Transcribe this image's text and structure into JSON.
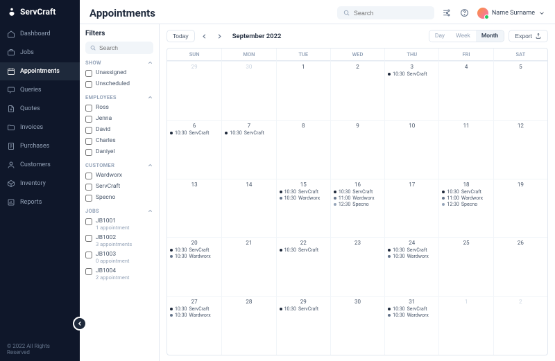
{
  "brand": {
    "name": "ServCraft"
  },
  "nav": {
    "items": [
      {
        "key": "dashboard",
        "label": "Dashboard",
        "icon": "home"
      },
      {
        "key": "jobs",
        "label": "Jobs",
        "icon": "briefcase"
      },
      {
        "key": "appointments",
        "label": "Appointments",
        "icon": "calendar",
        "active": true
      },
      {
        "key": "queries",
        "label": "Queries",
        "icon": "chat"
      },
      {
        "key": "quotes",
        "label": "Quotes",
        "icon": "doc-plus"
      },
      {
        "key": "invoices",
        "label": "Invoices",
        "icon": "folder"
      },
      {
        "key": "purchases",
        "label": "Purchases",
        "icon": "receipt"
      },
      {
        "key": "customers",
        "label": "Customers",
        "icon": "user"
      },
      {
        "key": "inventory",
        "label": "Inventory",
        "icon": "box"
      },
      {
        "key": "reports",
        "label": "Reports",
        "icon": "report"
      }
    ]
  },
  "footer": {
    "copyright": "© 2022 All Rights Reserved"
  },
  "page": {
    "title": "Appointments"
  },
  "topbar": {
    "search_placeholder": "Search",
    "user_name": "Name Surname"
  },
  "filters": {
    "title": "Filters",
    "search_placeholder": "Search",
    "sections": [
      {
        "key": "show",
        "title": "SHOW",
        "items": [
          {
            "label": "Unassigned"
          },
          {
            "label": "Unscheduled"
          }
        ]
      },
      {
        "key": "employees",
        "title": "EMPLOYEES",
        "items": [
          {
            "label": "Ross"
          },
          {
            "label": "Jenna"
          },
          {
            "label": "David"
          },
          {
            "label": "Charles"
          },
          {
            "label": "Daniyel"
          }
        ]
      },
      {
        "key": "customer",
        "title": "CUSTOMER",
        "items": [
          {
            "label": "Wardworx"
          },
          {
            "label": "ServCraft"
          },
          {
            "label": "Specno"
          }
        ]
      },
      {
        "key": "jobs",
        "title": "JOBS",
        "items": [
          {
            "label": "JB1001",
            "sub": "1 appointment"
          },
          {
            "label": "JB1002",
            "sub": "3 appointments"
          },
          {
            "label": "JB1003",
            "sub": "0 appointment"
          },
          {
            "label": "JB1004",
            "sub": "2 appointment"
          }
        ]
      }
    ]
  },
  "calendar": {
    "today_label": "Today",
    "period_label": "September 2022",
    "view_options": [
      "Day",
      "Week",
      "Month"
    ],
    "active_view": "Month",
    "export_label": "Export",
    "dow": [
      "SUN",
      "MON",
      "TUE",
      "WED",
      "THU",
      "FRI",
      "SAT"
    ],
    "colors": {
      "servcraft": "#1e293b",
      "wardworx": "#64748b",
      "specno": "#94a3b8"
    },
    "cells": [
      {
        "day": 29,
        "muted": true
      },
      {
        "day": 30,
        "muted": true
      },
      {
        "day": 1
      },
      {
        "day": 2
      },
      {
        "day": 3,
        "events": [
          {
            "time": "10:30",
            "label": "ServCraft",
            "color": "servcraft"
          }
        ]
      },
      {
        "day": 4
      },
      {
        "day": 5
      },
      {
        "day": 6,
        "events": [
          {
            "time": "10:30",
            "label": "ServCraft",
            "color": "servcraft"
          }
        ]
      },
      {
        "day": 7,
        "events": [
          {
            "time": "10:30",
            "label": "ServCraft",
            "color": "servcraft"
          }
        ]
      },
      {
        "day": 8
      },
      {
        "day": 9
      },
      {
        "day": 10
      },
      {
        "day": 11
      },
      {
        "day": 12
      },
      {
        "day": 13
      },
      {
        "day": 14
      },
      {
        "day": 15,
        "events": [
          {
            "time": "10:30",
            "label": "ServCraft",
            "color": "servcraft"
          },
          {
            "time": "10:30",
            "label": "Wardworx",
            "color": "wardworx"
          }
        ]
      },
      {
        "day": 16,
        "events": [
          {
            "time": "10:30",
            "label": "ServCraft",
            "color": "servcraft"
          },
          {
            "time": "11:00",
            "label": "Wardworx",
            "color": "wardworx"
          },
          {
            "time": "12:30",
            "label": "Specno",
            "color": "specno"
          }
        ]
      },
      {
        "day": 17
      },
      {
        "day": 18,
        "events": [
          {
            "time": "10:30",
            "label": "ServCraft",
            "color": "servcraft"
          },
          {
            "time": "11:00",
            "label": "Wardworx",
            "color": "wardworx"
          },
          {
            "time": "12:30",
            "label": "Specno",
            "color": "specno"
          }
        ]
      },
      {
        "day": 19
      },
      {
        "day": 20,
        "events": [
          {
            "time": "10:30",
            "label": "ServCraft",
            "color": "servcraft"
          },
          {
            "time": "10:30",
            "label": "Wardworx",
            "color": "wardworx"
          }
        ]
      },
      {
        "day": 21
      },
      {
        "day": 22,
        "events": [
          {
            "time": "10:30",
            "label": "ServCraft",
            "color": "servcraft"
          }
        ]
      },
      {
        "day": 23
      },
      {
        "day": 24,
        "events": [
          {
            "time": "10:30",
            "label": "ServCraft",
            "color": "servcraft"
          },
          {
            "time": "10:30",
            "label": "Wardworx",
            "color": "wardworx"
          }
        ]
      },
      {
        "day": 25
      },
      {
        "day": 26
      },
      {
        "day": 27,
        "events": [
          {
            "time": "10:30",
            "label": "ServCraft",
            "color": "servcraft"
          },
          {
            "time": "10:30",
            "label": "Wardworx",
            "color": "wardworx"
          }
        ]
      },
      {
        "day": 28
      },
      {
        "day": 29,
        "events": [
          {
            "time": "10:30",
            "label": "ServCraft",
            "color": "servcraft"
          }
        ]
      },
      {
        "day": 30
      },
      {
        "day": 31,
        "events": [
          {
            "time": "10:30",
            "label": "ServCraft",
            "color": "servcraft"
          },
          {
            "time": "10:30",
            "label": "Wardworx",
            "color": "wardworx"
          }
        ]
      },
      {
        "day": 1,
        "muted": true
      },
      {
        "day": 2,
        "muted": true
      }
    ]
  }
}
